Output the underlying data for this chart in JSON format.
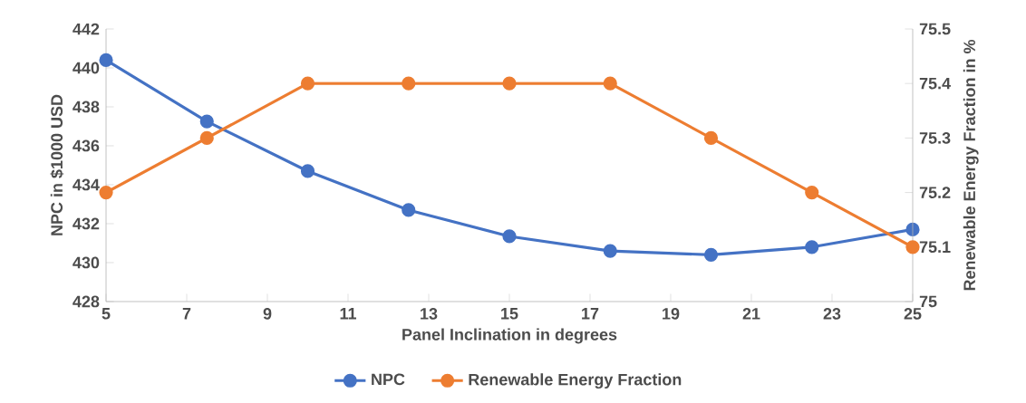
{
  "chart_data": {
    "type": "line",
    "xlabel": "Panel Inclination in degrees",
    "ylabel": "NPC in $1000 USD",
    "y2label": "Renewable Energy Fraction in %",
    "x": [
      5,
      7.5,
      10,
      12.5,
      15,
      17.5,
      20,
      22.5,
      25
    ],
    "series": [
      {
        "name": "NPC",
        "color": "#4472c4",
        "values": [
          440.4,
          437.25,
          434.7,
          432.7,
          431.35,
          430.6,
          430.4,
          430.8,
          431.7
        ]
      },
      {
        "name": "Renewable Energy Fraction",
        "color": "#ed7d31",
        "axis": "y2",
        "values": [
          75.2,
          75.3,
          75.4,
          75.4,
          75.4,
          75.4,
          75.3,
          75.2,
          75.1
        ]
      }
    ],
    "xlim": [
      5,
      25
    ],
    "xticks": [
      5,
      7,
      9,
      11,
      13,
      15,
      17,
      19,
      21,
      23,
      25
    ],
    "ylim": [
      428,
      442
    ],
    "yticks": [
      428,
      430,
      432,
      434,
      436,
      438,
      440,
      442
    ],
    "y2lim": [
      75,
      75.5
    ],
    "y2ticks": [
      75,
      75.1,
      75.2,
      75.3,
      75.4,
      75.5
    ],
    "grid": false,
    "legend": "bottom",
    "marker": "circle",
    "line_style": "solid"
  }
}
